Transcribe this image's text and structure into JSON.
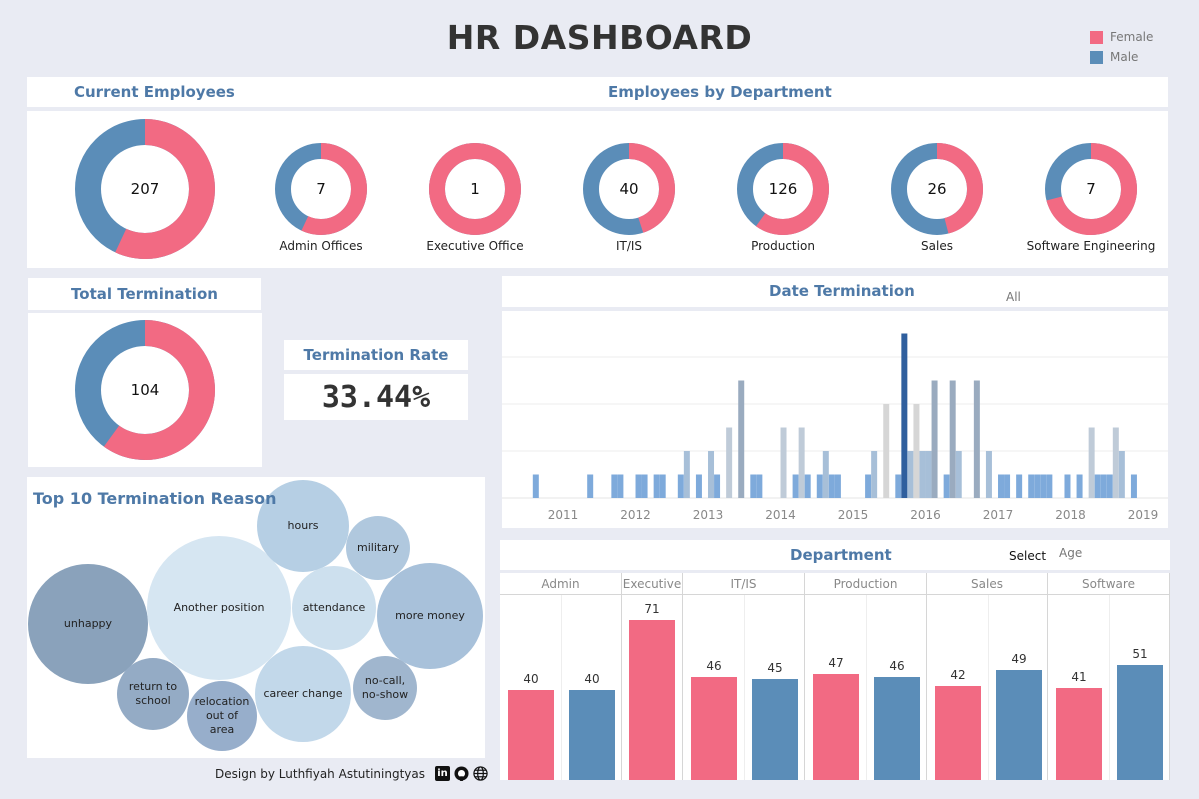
{
  "title": "HR DASHBOARD",
  "colors": {
    "female": "#f26a83",
    "male": "#5b8db8",
    "accent": "#4e79a7"
  },
  "legend": [
    {
      "label": "Female",
      "color": "#f26a83"
    },
    {
      "label": "Male",
      "color": "#5b8db8"
    }
  ],
  "current_employees": {
    "title": "Current Employees",
    "total": "207",
    "female_share": 0.57
  },
  "employees_by_department": {
    "title": "Employees by Department",
    "items": [
      {
        "label": "Admin Offices",
        "total": "7",
        "female_share": 0.57
      },
      {
        "label": "Executive Office",
        "total": "1",
        "female_share": 1.0
      },
      {
        "label": "IT/IS",
        "total": "40",
        "female_share": 0.45
      },
      {
        "label": "Production",
        "total": "126",
        "female_share": 0.6
      },
      {
        "label": "Sales",
        "total": "26",
        "female_share": 0.46
      },
      {
        "label": "Software Engineering",
        "total": "7",
        "female_share": 0.71
      }
    ]
  },
  "total_termination": {
    "title": "Total Termination",
    "total": "104",
    "female_share": 0.6
  },
  "termination_rate": {
    "title": "Termination Rate",
    "value": "33.44%"
  },
  "date_termination": {
    "title": "Date Termination",
    "filter_value": "All",
    "chart_data": {
      "type": "bar",
      "x_tick_labels": [
        "2011",
        "2012",
        "2013",
        "2014",
        "2015",
        "2016",
        "2017",
        "2018",
        "2019"
      ],
      "grid": true,
      "points": [
        {
          "date": "2010-08",
          "count": 1
        },
        {
          "date": "2011-05",
          "count": 1
        },
        {
          "date": "2011-09",
          "count": 1
        },
        {
          "date": "2011-10",
          "count": 1
        },
        {
          "date": "2012-01",
          "count": 1
        },
        {
          "date": "2012-02",
          "count": 1
        },
        {
          "date": "2012-04",
          "count": 1
        },
        {
          "date": "2012-05",
          "count": 1
        },
        {
          "date": "2012-08",
          "count": 1
        },
        {
          "date": "2012-09",
          "count": 2
        },
        {
          "date": "2012-11",
          "count": 1
        },
        {
          "date": "2013-01",
          "count": 2
        },
        {
          "date": "2013-02",
          "count": 1
        },
        {
          "date": "2013-04",
          "count": 3
        },
        {
          "date": "2013-06",
          "count": 5
        },
        {
          "date": "2013-08",
          "count": 1
        },
        {
          "date": "2013-09",
          "count": 1
        },
        {
          "date": "2014-01",
          "count": 3
        },
        {
          "date": "2014-03",
          "count": 1
        },
        {
          "date": "2014-04",
          "count": 3
        },
        {
          "date": "2014-05",
          "count": 1
        },
        {
          "date": "2014-07",
          "count": 1
        },
        {
          "date": "2014-08",
          "count": 2
        },
        {
          "date": "2014-09",
          "count": 1
        },
        {
          "date": "2014-10",
          "count": 1
        },
        {
          "date": "2015-03",
          "count": 1
        },
        {
          "date": "2015-04",
          "count": 2
        },
        {
          "date": "2015-06",
          "count": 4
        },
        {
          "date": "2015-08",
          "count": 1
        },
        {
          "date": "2015-09",
          "count": 7
        },
        {
          "date": "2015-10",
          "count": 2
        },
        {
          "date": "2015-11",
          "count": 4
        },
        {
          "date": "2015-12",
          "count": 2
        },
        {
          "date": "2016-01",
          "count": 2
        },
        {
          "date": "2016-02",
          "count": 5
        },
        {
          "date": "2016-04",
          "count": 1
        },
        {
          "date": "2016-05",
          "count": 5
        },
        {
          "date": "2016-06",
          "count": 2
        },
        {
          "date": "2016-09",
          "count": 5
        },
        {
          "date": "2016-11",
          "count": 2
        },
        {
          "date": "2017-01",
          "count": 1
        },
        {
          "date": "2017-02",
          "count": 1
        },
        {
          "date": "2017-04",
          "count": 1
        },
        {
          "date": "2017-06",
          "count": 1
        },
        {
          "date": "2017-07",
          "count": 1
        },
        {
          "date": "2017-08",
          "count": 1
        },
        {
          "date": "2017-09",
          "count": 1
        },
        {
          "date": "2017-12",
          "count": 1
        },
        {
          "date": "2018-02",
          "count": 1
        },
        {
          "date": "2018-04",
          "count": 3
        },
        {
          "date": "2018-05",
          "count": 1
        },
        {
          "date": "2018-06",
          "count": 1
        },
        {
          "date": "2018-07",
          "count": 1
        },
        {
          "date": "2018-08",
          "count": 3
        },
        {
          "date": "2018-09",
          "count": 2
        },
        {
          "date": "2018-11",
          "count": 1
        }
      ],
      "color_by_count": {
        "1": "#7eaadb",
        "2": "#a7bfd8",
        "3": "#bfcbd8",
        "4": "#d6d6d6",
        "5": "#9aabbf",
        "7": "#2f5f9e"
      }
    }
  },
  "top_reasons": {
    "title": "Top 10 Termination Reason",
    "items": [
      {
        "label": "unhappy",
        "color": "#8aa2bb"
      },
      {
        "label": "Another position",
        "color": "#d6e6f2"
      },
      {
        "label": "hours",
        "color": "#b6cfe4"
      },
      {
        "label": "military",
        "color": "#b0c8de"
      },
      {
        "label": "attendance",
        "color": "#cde0ee"
      },
      {
        "label": "more money",
        "color": "#a8c1da"
      },
      {
        "label": "return to school",
        "color": "#94abc5"
      },
      {
        "label": "relocation out of area",
        "color": "#97aecb"
      },
      {
        "label": "career change",
        "color": "#c2d8ea"
      },
      {
        "label": "no-call, no-show",
        "color": "#a0b6ce"
      }
    ]
  },
  "department": {
    "title": "Department",
    "select_label": "Select",
    "select_value": "Age",
    "chart_data": {
      "type": "bar",
      "categories": [
        "Admin",
        "Executive",
        "IT/IS",
        "Production",
        "Sales",
        "Software"
      ],
      "series": [
        {
          "name": "Female",
          "values": [
            40,
            71,
            46,
            47,
            42,
            41
          ]
        },
        {
          "name": "Male",
          "values": [
            40,
            null,
            45,
            46,
            49,
            51
          ]
        }
      ]
    }
  },
  "footer": {
    "credit": "Design by Luthfiyah Astutiningtyas"
  }
}
